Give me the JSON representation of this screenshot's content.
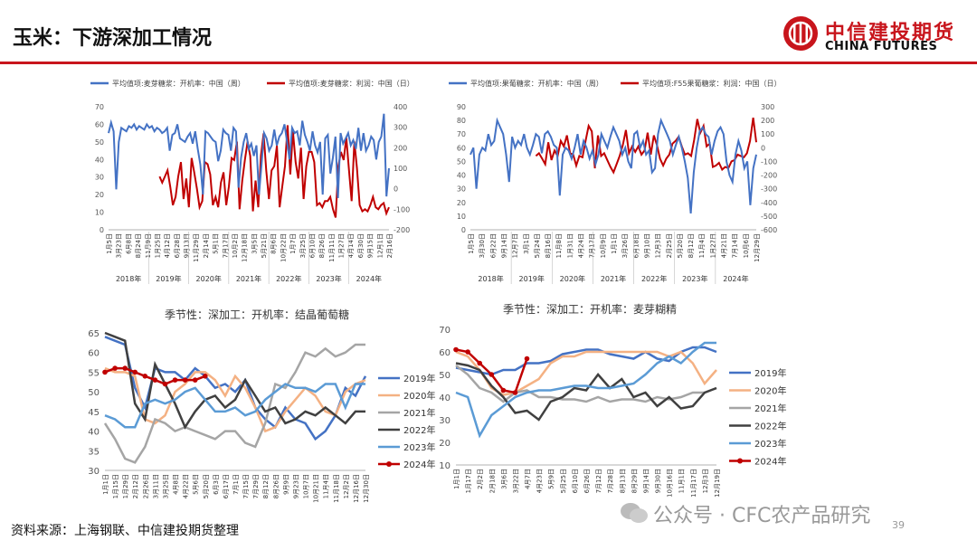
{
  "header": {
    "title": "玉米：下游深加工情况"
  },
  "logo": {
    "cn": "中信建投期货",
    "en": "CHINA FUTURES"
  },
  "footer": {
    "source": "资料来源：上海钢联、中信建投期货整理",
    "watermark": "公众号 · CFC农产品研究",
    "page": "39"
  },
  "colors": {
    "accent": "#c8151c",
    "blue": "#4472c4",
    "red": "#c00000"
  },
  "chart_data": [
    {
      "type": "line",
      "id": "c1",
      "legend": [
        "平均值项:麦芽糖浆：开机率：中国（周）",
        "平均值项:麦芽糖浆：利润：中国（日）"
      ],
      "left_ticks": [
        "70",
        "60",
        "50",
        "40",
        "30",
        "20",
        "10",
        "0"
      ],
      "right_ticks": [
        "400",
        "300",
        "200",
        "100",
        "0",
        "-100",
        "-200"
      ],
      "ylim_left": [
        0,
        70
      ],
      "ylim_right": [
        -200,
        400
      ],
      "xticks": [
        "1月5日",
        "3月23日",
        "6月8日",
        "8月24日",
        "11月9日",
        "1月25日",
        "4月12日",
        "6月28日",
        "9月13日",
        "11月29日",
        "2月14日",
        "5月1日",
        "7月17日",
        "10月2日",
        "12月18日",
        "3月5日",
        "5月21日",
        "8月6日",
        "10月22日",
        "1月7日",
        "3月25日",
        "6月10日",
        "8月26日",
        "11月11日",
        "1月27日",
        "4月14日",
        "6月30日",
        "9月15日",
        "12月1日",
        "2月16日"
      ],
      "years": [
        "2018年",
        "2019年",
        "2020年",
        "2021年",
        "2022年",
        "2023年",
        "2024年"
      ],
      "series_left": {
        "name": "开机率",
        "values": [
          55,
          61,
          56,
          23,
          50,
          58,
          57,
          56,
          59,
          58,
          60,
          57,
          59,
          58,
          57,
          60,
          58,
          59,
          56,
          58,
          57,
          55,
          56,
          58,
          45,
          54,
          55,
          60,
          52,
          51,
          50,
          53,
          55,
          49,
          56,
          46,
          37,
          20,
          56,
          55,
          53,
          51,
          50,
          39,
          45,
          57,
          55,
          54,
          45,
          58,
          56,
          24,
          41,
          50,
          55,
          46,
          49,
          42,
          48,
          20,
          37,
          55,
          52,
          45,
          48,
          57,
          48,
          53,
          55,
          60,
          50,
          40,
          58,
          55,
          56,
          48,
          62,
          54,
          50,
          45,
          56,
          48,
          44,
          50,
          20,
          52,
          54,
          32,
          41,
          53,
          18,
          55,
          49,
          52,
          55,
          48,
          51,
          46,
          58,
          45,
          55,
          45,
          48,
          53,
          51,
          40,
          50,
          53,
          66,
          19,
          35
        ]
      },
      "series_right": {
        "name": "利润",
        "start_index": 20,
        "values": [
          60,
          30,
          60,
          90,
          10,
          -80,
          -40,
          60,
          130,
          -50,
          50,
          -90,
          150,
          80,
          0,
          -90,
          -60,
          130,
          120,
          70,
          -80,
          -40,
          -90,
          30,
          80,
          -80,
          10,
          150,
          140,
          230,
          -100,
          40,
          140,
          230,
          160,
          -110,
          40,
          -90,
          160,
          270,
          90,
          -50,
          90,
          110,
          210,
          -90,
          10,
          110,
          310,
          70,
          280,
          130,
          50,
          200,
          -50,
          110,
          180,
          180,
          130,
          -80,
          -70,
          -90,
          -60,
          -60,
          -40,
          -100,
          -140,
          110,
          180,
          140,
          250,
          90,
          -60,
          230,
          100,
          -80,
          -110,
          -100,
          -110,
          -80,
          -40,
          -90,
          -100,
          -80,
          -70,
          -120,
          -90
        ]
      }
    },
    {
      "type": "line",
      "id": "c2",
      "legend": [
        "平均值项:果葡糖浆：开机率：中国（周）",
        "平均值项:F55果葡糖浆：利润：中国（日）"
      ],
      "left_ticks": [
        "90",
        "80",
        "70",
        "60",
        "50",
        "40",
        "30",
        "20",
        "10",
        "0"
      ],
      "right_ticks": [
        "300",
        "200",
        "100",
        "0",
        "-100",
        "-200",
        "-300",
        "-400",
        "-500",
        "-600"
      ],
      "ylim_left": [
        0,
        90
      ],
      "ylim_right": [
        -600,
        300
      ],
      "xticks": [
        "1月5日",
        "3月30日",
        "6月22日",
        "9月14日",
        "12月7日",
        "3月1日",
        "5月24日",
        "8月16日",
        "11月8日",
        "1月31日",
        "4月24日",
        "7月17日",
        "10月9日",
        "1月1日",
        "3月26日",
        "6月18日",
        "9月10日",
        "12月3日",
        "2月25日",
        "5月20日",
        "8月12日",
        "11月4日",
        "1月27日",
        "4月21日",
        "7月14日",
        "10月6日",
        "12月29日"
      ],
      "years": [
        "2018年",
        "2019年",
        "2020年",
        "2021年",
        "2022年",
        "2023年",
        "2024年"
      ],
      "series_left": {
        "name": "开机率",
        "values": [
          55,
          60,
          30,
          55,
          60,
          58,
          70,
          62,
          65,
          80,
          75,
          70,
          55,
          35,
          68,
          60,
          65,
          62,
          70,
          60,
          55,
          62,
          70,
          68,
          56,
          70,
          72,
          68,
          62,
          60,
          25,
          55,
          60,
          58,
          52,
          60,
          70,
          55,
          65,
          60,
          52,
          58,
          48,
          55,
          70,
          65,
          60,
          68,
          75,
          70,
          65,
          55,
          60,
          50,
          45,
          70,
          72,
          60,
          65,
          55,
          58,
          42,
          45,
          70,
          80,
          75,
          70,
          65,
          55,
          62,
          68,
          60,
          50,
          38,
          12,
          42,
          60,
          72,
          75,
          70,
          68,
          55,
          65,
          72,
          75,
          70,
          50,
          40,
          35,
          55,
          65,
          58,
          45,
          50,
          18,
          45,
          55
        ]
      },
      "series_right": {
        "name": "利润",
        "start_index": 22,
        "values": [
          -60,
          -40,
          -80,
          -120,
          40,
          -90,
          -20,
          -60,
          50,
          10,
          90,
          -40,
          -50,
          -130,
          -60,
          -70,
          50,
          160,
          120,
          -150,
          90,
          -60,
          -40,
          -90,
          -140,
          -180,
          -120,
          -60,
          20,
          130,
          -40,
          10,
          -30,
          10,
          -50,
          -20,
          110,
          -50,
          90,
          20,
          -80,
          -130,
          -80,
          -50,
          30,
          50,
          80,
          10,
          -50,
          -40,
          -60,
          60,
          210,
          110,
          160,
          10,
          30,
          -140,
          -130,
          -110,
          -160,
          -140,
          -150,
          -100,
          -90,
          -50,
          -60,
          -70,
          -40,
          50,
          220,
          40
        ]
      }
    },
    {
      "type": "line",
      "id": "c3",
      "title": "季节性：深加工：开机率：结晶葡萄糖",
      "yticks": [
        "65",
        "60",
        "55",
        "50",
        "45",
        "40",
        "35",
        "30"
      ],
      "ylim": [
        30,
        65
      ],
      "xticks": [
        "1月1日",
        "1月15日",
        "1月29日",
        "2月12日",
        "2月26日",
        "3月11日",
        "3月25日",
        "4月8日",
        "4月22日",
        "5月6日",
        "5月20日",
        "6月3日",
        "6月17日",
        "7月1日",
        "7月15日",
        "7月29日",
        "8月12日",
        "8月26日",
        "9月9日",
        "9月23日",
        "10月7日",
        "10月21日",
        "11月4日",
        "11月18日",
        "12月2日",
        "12月16日",
        "12月30日"
      ],
      "series": [
        {
          "name": "2019年",
          "color": "#4472c4",
          "values": [
            64,
            63,
            62,
            51,
            46,
            56,
            55,
            55,
            53,
            56,
            54,
            51,
            52,
            50,
            53,
            46,
            43,
            41,
            46,
            43,
            42,
            38,
            40,
            44,
            51,
            49,
            54
          ]
        },
        {
          "name": "2020年",
          "color": "#f4b183",
          "values": [
            56,
            55,
            55,
            54,
            43,
            42,
            44,
            50,
            52,
            55,
            55,
            53,
            49,
            54,
            51,
            46,
            40,
            41,
            45,
            48,
            51,
            49,
            45,
            44,
            50,
            52,
            53
          ]
        },
        {
          "name": "2021年",
          "color": "#a5a5a5",
          "values": [
            42,
            38,
            33,
            32,
            36,
            43,
            42,
            40,
            41,
            40,
            39,
            38,
            40,
            40,
            37,
            36,
            42,
            52,
            51,
            55,
            60,
            59,
            61,
            59,
            60,
            62,
            62
          ]
        },
        {
          "name": "2022年",
          "color": "#404040",
          "values": [
            65,
            64,
            63,
            47,
            43,
            57,
            52,
            47,
            41,
            45,
            48,
            49,
            46,
            48,
            53,
            49,
            45,
            46,
            42,
            43,
            45,
            44,
            46,
            44,
            42,
            45,
            45
          ]
        },
        {
          "name": "2023年",
          "color": "#5b9bd5",
          "values": [
            44,
            43,
            41,
            41,
            47,
            48,
            47,
            48,
            50,
            51,
            48,
            45,
            45,
            46,
            44,
            45,
            48,
            50,
            52,
            51,
            51,
            50,
            52,
            52,
            46,
            52,
            52
          ]
        },
        {
          "name": "2024年",
          "color": "#c00000",
          "values": [
            55,
            56,
            56,
            55,
            54,
            53,
            52,
            53,
            53,
            53,
            54
          ]
        }
      ]
    },
    {
      "type": "line",
      "id": "c4",
      "title": "季节性：深加工：开机率：麦芽糊精",
      "yticks": [
        "70",
        "60",
        "50",
        "40",
        "30",
        "20",
        "10"
      ],
      "ylim": [
        10,
        70
      ],
      "xticks": [
        "1月1日",
        "1月17日",
        "2月2日",
        "2月18日",
        "3月6日",
        "3月22日",
        "4月7日",
        "4月23日",
        "5月9日",
        "5月25日",
        "6月10日",
        "6月26日",
        "7月12日",
        "7月28日",
        "8月13日",
        "8月29日",
        "9月14日",
        "9月30日",
        "10月16日",
        "11月1日",
        "11月17日",
        "12月3日",
        "12月19日"
      ],
      "series": [
        {
          "name": "2019年",
          "color": "#4472c4",
          "values": [
            53,
            52,
            51,
            50,
            52,
            52,
            55,
            55,
            56,
            59,
            60,
            61,
            61,
            59,
            58,
            57,
            60,
            57,
            56,
            60,
            62,
            62,
            60
          ]
        },
        {
          "name": "2020年",
          "color": "#f4b183",
          "values": [
            60,
            58,
            52,
            44,
            41,
            42,
            45,
            48,
            55,
            58,
            58,
            60,
            60,
            60,
            60,
            60,
            60,
            60,
            58,
            60,
            55,
            46,
            52
          ]
        },
        {
          "name": "2021年",
          "color": "#a5a5a5",
          "values": [
            54,
            50,
            44,
            42,
            38,
            42,
            43,
            40,
            40,
            39,
            39,
            38,
            40,
            38,
            39,
            39,
            38,
            40,
            39,
            40,
            42,
            42,
            44
          ]
        },
        {
          "name": "2022年",
          "color": "#404040",
          "values": [
            55,
            54,
            52,
            45,
            40,
            33,
            34,
            30,
            38,
            40,
            44,
            43,
            50,
            44,
            48,
            40,
            42,
            36,
            40,
            35,
            36,
            42,
            44
          ]
        },
        {
          "name": "2023年",
          "color": "#5b9bd5",
          "values": [
            42,
            40,
            23,
            32,
            36,
            40,
            42,
            43,
            43,
            44,
            45,
            45,
            44,
            44,
            45,
            46,
            50,
            55,
            58,
            55,
            60,
            64,
            64
          ]
        },
        {
          "name": "2024年",
          "color": "#c00000",
          "values": [
            61,
            60,
            55,
            50,
            43,
            42,
            57
          ]
        }
      ]
    }
  ]
}
